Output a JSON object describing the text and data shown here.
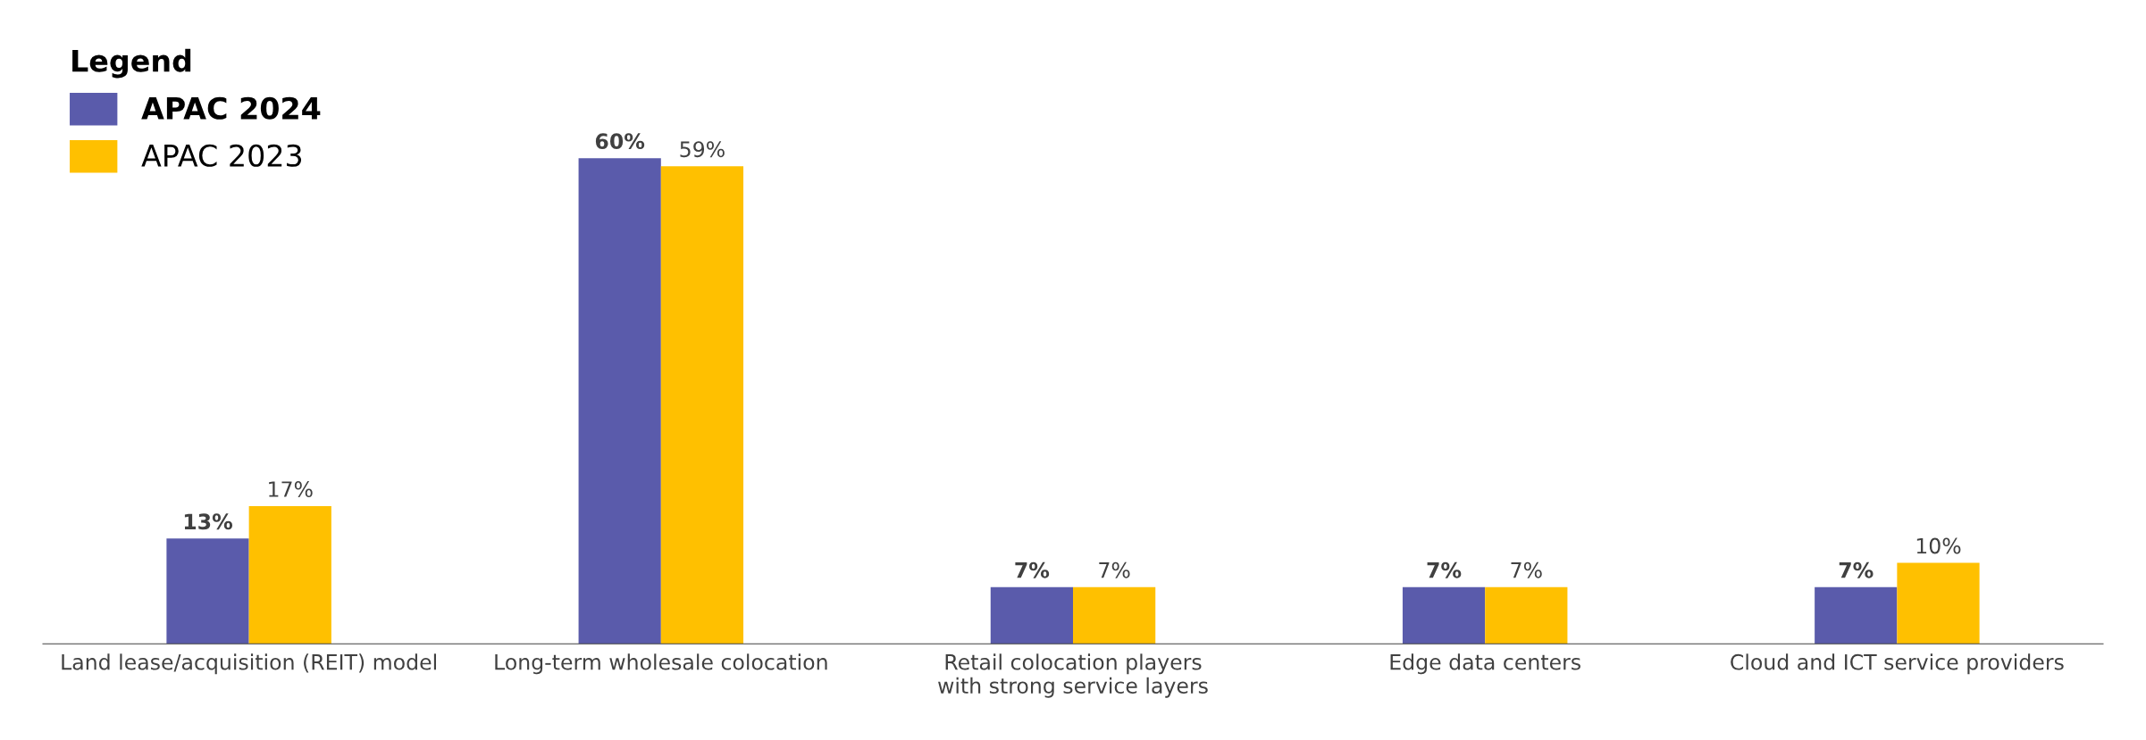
{
  "chart_data": {
    "type": "bar",
    "categories": [
      "Land lease/acquisition (REIT) model",
      "Long-term wholesale colocation",
      "Retail colocation players\nwith strong service layers",
      "Edge data centers",
      "Cloud and ICT service providers"
    ],
    "series": [
      {
        "name": "APAC 2024",
        "color": "#5a5bab",
        "values": [
          13,
          60,
          7,
          7,
          7
        ],
        "value_labels": [
          "13%",
          "60%",
          "7%",
          "7%",
          "7%"
        ]
      },
      {
        "name": "APAC 2023",
        "color": "#ffc000",
        "values": [
          17,
          59,
          7,
          7,
          10
        ],
        "value_labels": [
          "17%",
          "59%",
          "7%",
          "7%",
          "10%"
        ]
      }
    ],
    "legend_title": "Legend",
    "legend": "top left",
    "grid": false,
    "tick_labels": "x"
  }
}
